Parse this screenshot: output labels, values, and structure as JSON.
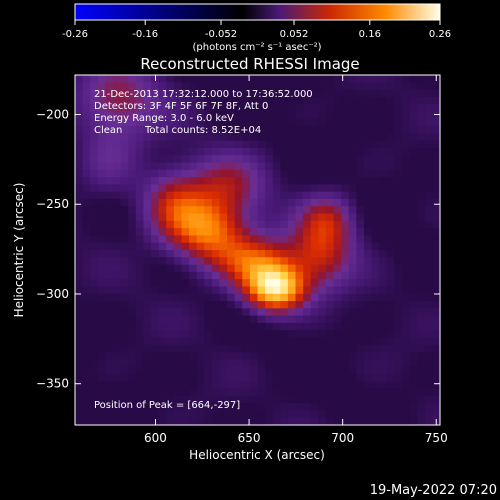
{
  "plot_title": "Reconstructed RHESSI Image",
  "colorbar": {
    "ticks": [
      "-0.26",
      "-0.16",
      "-0.052",
      "0.052",
      "0.16",
      "0.26"
    ],
    "units": "(photons cm⁻² s⁻¹ asec⁻²)",
    "range": [
      -0.26,
      0.26
    ],
    "colormap": [
      "#0000ff",
      "#000000",
      "#4a1a78",
      "#cc2800",
      "#ff8a00",
      "#ffffe8"
    ]
  },
  "annotations": {
    "time_range": "21-Dec-2013 17:32:12.000 to 17:36:52.000",
    "detectors": "Detectors: 3F 4F 5F 6F 7F 8F, Att 0",
    "energy": "Energy Range: 3.0 - 6.0 keV",
    "clean": "Clean",
    "counts": "Total counts: 8.52E+04",
    "peak": "Position of Peak = [664,-297]"
  },
  "footer_timestamp": "19-May-2022 07:20",
  "chart_data": {
    "type": "heatmap",
    "title": "Reconstructed RHESSI Image",
    "xlabel": "Heliocentric X (arcsec)",
    "ylabel": "Heliocentric Y (arcsec)",
    "xlim": [
      557,
      752
    ],
    "ylim": [
      -373,
      -178
    ],
    "xticks": [
      600,
      650,
      700,
      750
    ],
    "yticks": [
      -200,
      -250,
      -300,
      -350
    ],
    "peak": {
      "x": 664,
      "y": -297
    },
    "components": [
      {
        "x": 664,
        "y": -297,
        "amp": 1.0,
        "sx": 11,
        "sy": 9
      },
      {
        "x": 652,
        "y": -282,
        "amp": 0.55,
        "sx": 15,
        "sy": 10
      },
      {
        "x": 628,
        "y": -265,
        "amp": 0.65,
        "sx": 14,
        "sy": 12
      },
      {
        "x": 610,
        "y": -250,
        "amp": 0.45,
        "sx": 12,
        "sy": 13
      },
      {
        "x": 638,
        "y": -240,
        "amp": 0.35,
        "sx": 14,
        "sy": 12
      },
      {
        "x": 688,
        "y": -278,
        "amp": 0.45,
        "sx": 12,
        "sy": 13
      },
      {
        "x": 692,
        "y": -258,
        "amp": 0.35,
        "sx": 10,
        "sy": 10
      },
      {
        "x": 580,
        "y": -192,
        "amp": 0.35,
        "sx": 16,
        "sy": 14
      },
      {
        "x": 575,
        "y": -225,
        "amp": 0.2,
        "sx": 12,
        "sy": 14
      }
    ]
  }
}
